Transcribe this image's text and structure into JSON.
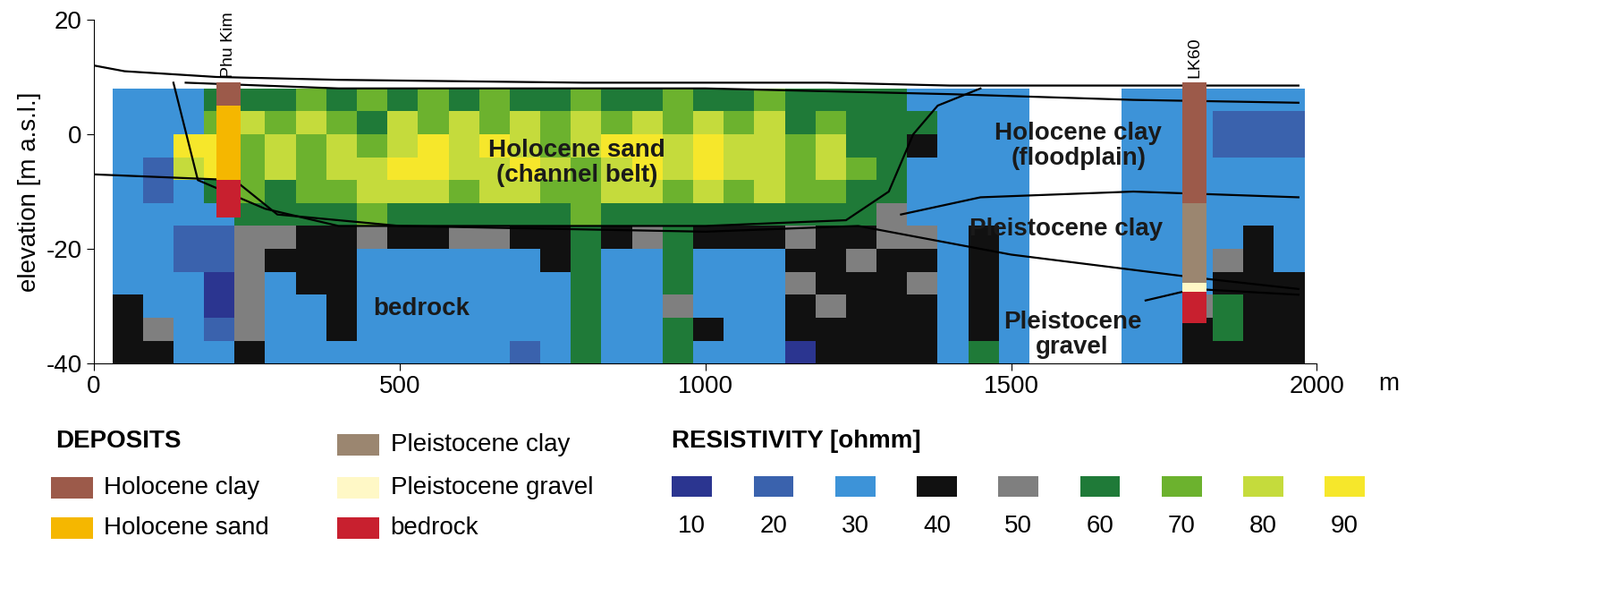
{
  "chart_data": {
    "type": "heatmap",
    "ylabel": "elevation [m a.s.l.]",
    "x_unit": "m",
    "xlim": [
      0,
      2000
    ],
    "xticks": [
      0,
      500,
      1000,
      1500,
      2000
    ],
    "ylim": [
      -40,
      20
    ],
    "yticks": [
      -40,
      -20,
      0,
      20
    ],
    "heatmap": {
      "x_edges": [
        30,
        80,
        130,
        180,
        230,
        280,
        330,
        380,
        430,
        480,
        530,
        580,
        630,
        680,
        730,
        780,
        830,
        880,
        930,
        980,
        1030,
        1080,
        1130,
        1180,
        1230,
        1280,
        1330,
        1380,
        1430,
        1480,
        1530,
        1580,
        1630,
        1680,
        1730,
        1780,
        1830,
        1880,
        1930,
        1980
      ],
      "y_edges": [
        8,
        4,
        0,
        -4,
        -8,
        -12,
        -16,
        -20,
        -24,
        -28,
        -32,
        -36,
        -40
      ],
      "cells": [
        [
          30,
          30,
          30,
          60,
          60,
          60,
          70,
          60,
          70,
          60,
          70,
          60,
          70,
          60,
          60,
          70,
          60,
          60,
          70,
          60,
          60,
          70,
          60,
          60,
          60,
          60,
          30,
          30,
          30,
          30,
          null,
          null,
          null,
          30,
          30,
          30,
          30,
          30,
          30
        ],
        [
          30,
          30,
          30,
          70,
          80,
          70,
          80,
          70,
          60,
          80,
          70,
          80,
          70,
          80,
          70,
          80,
          70,
          80,
          70,
          80,
          70,
          80,
          60,
          70,
          60,
          60,
          60,
          30,
          30,
          30,
          null,
          null,
          null,
          30,
          30,
          30,
          20,
          20,
          20
        ],
        [
          30,
          30,
          90,
          90,
          70,
          80,
          70,
          80,
          70,
          80,
          90,
          80,
          90,
          80,
          70,
          80,
          90,
          90,
          80,
          90,
          80,
          80,
          70,
          80,
          60,
          60,
          40,
          30,
          30,
          30,
          null,
          null,
          null,
          30,
          30,
          30,
          20,
          20,
          20
        ],
        [
          30,
          20,
          80,
          90,
          70,
          80,
          70,
          80,
          80,
          90,
          90,
          80,
          80,
          90,
          80,
          70,
          80,
          90,
          80,
          90,
          80,
          80,
          70,
          80,
          70,
          60,
          30,
          30,
          30,
          30,
          null,
          null,
          null,
          30,
          30,
          30,
          30,
          30,
          30
        ],
        [
          30,
          20,
          30,
          60,
          70,
          60,
          70,
          70,
          80,
          80,
          80,
          70,
          80,
          80,
          70,
          70,
          80,
          80,
          70,
          80,
          70,
          80,
          70,
          70,
          60,
          60,
          30,
          30,
          30,
          30,
          null,
          null,
          null,
          30,
          30,
          30,
          30,
          30,
          30
        ],
        [
          30,
          30,
          30,
          30,
          60,
          60,
          60,
          60,
          70,
          60,
          60,
          60,
          60,
          60,
          60,
          70,
          60,
          60,
          60,
          60,
          60,
          60,
          60,
          60,
          60,
          50,
          30,
          30,
          30,
          30,
          null,
          null,
          null,
          30,
          30,
          30,
          30,
          30,
          30
        ],
        [
          30,
          30,
          20,
          20,
          50,
          50,
          40,
          40,
          50,
          40,
          40,
          50,
          50,
          40,
          40,
          60,
          40,
          50,
          60,
          40,
          40,
          40,
          50,
          40,
          40,
          50,
          50,
          30,
          40,
          30,
          null,
          null,
          null,
          30,
          30,
          30,
          30,
          40,
          30
        ],
        [
          30,
          30,
          20,
          20,
          50,
          40,
          40,
          40,
          30,
          30,
          30,
          30,
          30,
          30,
          40,
          60,
          30,
          30,
          60,
          30,
          30,
          30,
          40,
          40,
          50,
          40,
          40,
          30,
          40,
          30,
          null,
          null,
          null,
          30,
          30,
          30,
          50,
          40,
          30
        ],
        [
          30,
          30,
          30,
          10,
          50,
          30,
          40,
          40,
          30,
          30,
          30,
          30,
          30,
          30,
          30,
          60,
          30,
          30,
          60,
          30,
          30,
          30,
          50,
          40,
          40,
          40,
          50,
          30,
          40,
          30,
          null,
          null,
          null,
          30,
          30,
          30,
          40,
          40,
          40
        ],
        [
          40,
          30,
          30,
          10,
          50,
          30,
          30,
          40,
          30,
          30,
          30,
          30,
          30,
          30,
          30,
          60,
          30,
          30,
          50,
          30,
          30,
          30,
          40,
          50,
          40,
          40,
          40,
          30,
          40,
          30,
          null,
          null,
          null,
          30,
          30,
          50,
          60,
          40,
          40
        ],
        [
          40,
          50,
          30,
          20,
          50,
          30,
          30,
          40,
          30,
          30,
          30,
          30,
          30,
          30,
          30,
          60,
          30,
          30,
          60,
          40,
          30,
          30,
          40,
          40,
          40,
          40,
          40,
          30,
          40,
          30,
          null,
          null,
          null,
          30,
          30,
          40,
          60,
          40,
          40
        ],
        [
          40,
          40,
          30,
          30,
          40,
          30,
          30,
          30,
          30,
          30,
          30,
          30,
          30,
          20,
          30,
          60,
          30,
          30,
          60,
          30,
          30,
          30,
          10,
          40,
          40,
          40,
          40,
          30,
          60,
          30,
          null,
          null,
          null,
          30,
          30,
          40,
          40,
          40,
          40
        ]
      ]
    },
    "colorbar": {
      "title": "RESISTIVITY [ohmm]",
      "ticks": [
        10,
        20,
        30,
        40,
        50,
        60,
        70,
        80,
        90
      ],
      "colors": [
        "#2b3590",
        "#3a62ad",
        "#3d93d8",
        "#111111",
        "#7f7f7f",
        "#1f7a38",
        "#6cb22e",
        "#c5db3c",
        "#f6e72b"
      ]
    },
    "boundaries": [
      {
        "x": [
          0,
          50,
          200,
          400,
          800,
          1200,
          1400,
          1600,
          1970
        ],
        "y": [
          12,
          11,
          10,
          9.5,
          9,
          9,
          8.5,
          8.5,
          8.5
        ]
      },
      {
        "x": [
          150,
          400,
          1000,
          1400,
          1700,
          1970
        ],
        "y": [
          9,
          8,
          8,
          7,
          6,
          5.5
        ]
      },
      {
        "x": [
          130,
          170,
          280,
          400,
          1000,
          1230,
          1300,
          1340,
          1380,
          1450
        ],
        "y": [
          9,
          -8,
          -13,
          -16,
          -16,
          -15,
          -10,
          0,
          5,
          8
        ]
      },
      {
        "x": [
          1320,
          1450,
          1700,
          1970
        ],
        "y": [
          -14,
          -11,
          -10,
          -11
        ]
      },
      {
        "x": [
          0,
          230,
          300,
          500,
          1000,
          1250,
          1500,
          1800,
          1970
        ],
        "y": [
          -7,
          -8,
          -14,
          -16,
          -17,
          -16,
          -21,
          -25,
          -27
        ]
      },
      {
        "x": [
          1720,
          1800,
          1970
        ],
        "y": [
          -29,
          -27,
          -28
        ]
      }
    ],
    "deposits": {
      "title": "DEPOSITS",
      "items": [
        {
          "name": "Holocene clay",
          "color": "#9c5a4a"
        },
        {
          "name": "Holocene sand",
          "color": "#f5b700"
        },
        {
          "name": "Pleistocene clay",
          "color": "#9b8670"
        },
        {
          "name": "Pleistocene gravel",
          "color": "#fff8c6"
        },
        {
          "name": "bedrock",
          "color": "#c8202f"
        }
      ]
    },
    "boreholes": [
      {
        "name": "Phu Kim",
        "x": 220,
        "layers": [
          {
            "deposit": "Holocene clay",
            "top": 9,
            "bottom": 5
          },
          {
            "deposit": "Holocene sand",
            "top": 5,
            "bottom": -8
          },
          {
            "deposit": "bedrock",
            "top": -8,
            "bottom": -14.5
          }
        ]
      },
      {
        "name": "LK60",
        "x": 1800,
        "layers": [
          {
            "deposit": "Holocene clay",
            "top": 9,
            "bottom": -12
          },
          {
            "deposit": "Pleistocene clay",
            "top": -12,
            "bottom": -26
          },
          {
            "deposit": "Pleistocene gravel",
            "top": -26,
            "bottom": -27.5
          },
          {
            "deposit": "bedrock",
            "top": -27.5,
            "bottom": -33
          }
        ]
      }
    ],
    "annotations": [
      {
        "text": "Holocene sand\n(channel belt)"
      },
      {
        "text": "Holocene clay\n(floodplain)"
      },
      {
        "text": "Pleistocene clay"
      },
      {
        "text": "Pleistocene\ngravel"
      },
      {
        "text": "bedrock"
      }
    ]
  }
}
